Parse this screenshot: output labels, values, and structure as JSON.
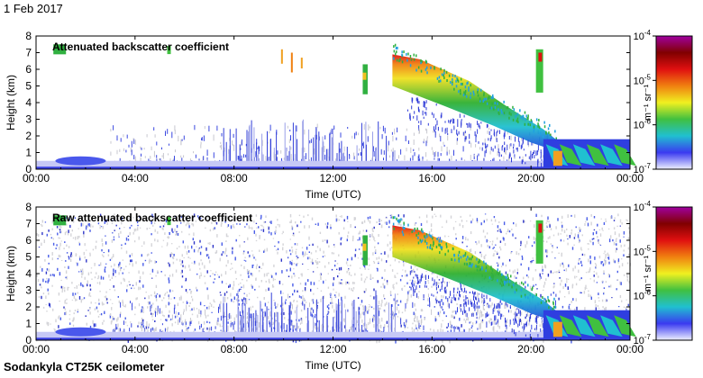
{
  "date": "1 Feb 2017",
  "footer": "Sodankyla CT25K ceilometer",
  "time_axis_label": "Time (UTC)",
  "height_axis_label": "Height (km)",
  "colorbar": {
    "unit_label": "m⁻¹ sr⁻¹",
    "ticks": [
      {
        "base": "10",
        "exp": "-4",
        "value": 0.0001
      },
      {
        "base": "10",
        "exp": "-5",
        "value": 1e-05
      },
      {
        "base": "10",
        "exp": "-6",
        "value": 1e-06
      },
      {
        "base": "10",
        "exp": "-7",
        "value": 1e-07
      }
    ],
    "colors": [
      "#eef0ff",
      "#3a3af0",
      "#20c0d0",
      "#40c040",
      "#f0f020",
      "#f08010",
      "#e01010",
      "#800000",
      "#a000a0"
    ]
  },
  "chart_data": [
    {
      "type": "heatmap",
      "title": "Attenuated backscatter coefficient",
      "xlabel": "Time (UTC)",
      "ylabel": "Height (km)",
      "x_ticks": [
        "00:00",
        "04:00",
        "08:00",
        "12:00",
        "16:00",
        "20:00",
        "00:00"
      ],
      "x_tick_hours": [
        0,
        4,
        8,
        12,
        16,
        20,
        24
      ],
      "y_ticks": [
        0,
        1,
        2,
        3,
        4,
        5,
        6,
        7,
        8
      ],
      "xlim_hours": [
        0,
        24
      ],
      "ylim_km": [
        0,
        8
      ],
      "color_scale": "log",
      "clim": [
        1e-07,
        0.0001
      ],
      "features": [
        {
          "name": "surface layer",
          "t_start": 0,
          "t_end": 24,
          "z_bottom": 0,
          "z_top": 0.5,
          "level": 2e-07
        },
        {
          "name": "cloud band",
          "t_start": 14.4,
          "t_end": 21.0,
          "z_top_start": 6.9,
          "z_top_end": 1.8,
          "level": 2e-06
        },
        {
          "name": "low cloud",
          "t_start": 20.5,
          "t_end": 24,
          "z_bottom": 0.1,
          "z_top": 1.8,
          "level": 1e-06
        },
        {
          "name": "high cloud patch",
          "t_start": 0.6,
          "t_end": 1.3,
          "z_bottom": 6.9,
          "z_top": 7.5,
          "level": 5e-06
        },
        {
          "name": "isolated column",
          "t_start": 13.2,
          "t_end": 13.4,
          "z_bottom": 4.5,
          "z_top": 6.3,
          "level": 5e-06
        }
      ]
    },
    {
      "type": "heatmap",
      "title": "Raw attenuated backscatter coefficient",
      "xlabel": "Time (UTC)",
      "ylabel": "Height (km)",
      "x_ticks": [
        "00:00",
        "04:00",
        "08:00",
        "12:00",
        "16:00",
        "20:00",
        "00:00"
      ],
      "x_tick_hours": [
        0,
        4,
        8,
        12,
        16,
        20,
        24
      ],
      "y_ticks": [
        0,
        1,
        2,
        3,
        4,
        5,
        6,
        7,
        8
      ],
      "xlim_hours": [
        0,
        24
      ],
      "ylim_km": [
        0,
        8
      ],
      "color_scale": "log",
      "clim": [
        1e-07,
        0.0001
      ],
      "features": [
        {
          "name": "noise background",
          "t_start": 0,
          "t_end": 24,
          "z_bottom": 0,
          "z_top": 7.6,
          "level": 1.2e-07
        },
        {
          "name": "surface layer",
          "t_start": 0,
          "t_end": 24,
          "z_bottom": 0,
          "z_top": 0.5,
          "level": 2e-07
        },
        {
          "name": "cloud band",
          "t_start": 14.4,
          "t_end": 21.0,
          "z_top_start": 6.9,
          "z_top_end": 1.8,
          "level": 2e-06
        },
        {
          "name": "low cloud",
          "t_start": 20.5,
          "t_end": 24,
          "z_bottom": 0.1,
          "z_top": 1.8,
          "level": 1e-06
        },
        {
          "name": "isolated column",
          "t_start": 13.2,
          "t_end": 13.4,
          "z_bottom": 4.5,
          "z_top": 6.3,
          "level": 5e-06
        }
      ]
    }
  ]
}
